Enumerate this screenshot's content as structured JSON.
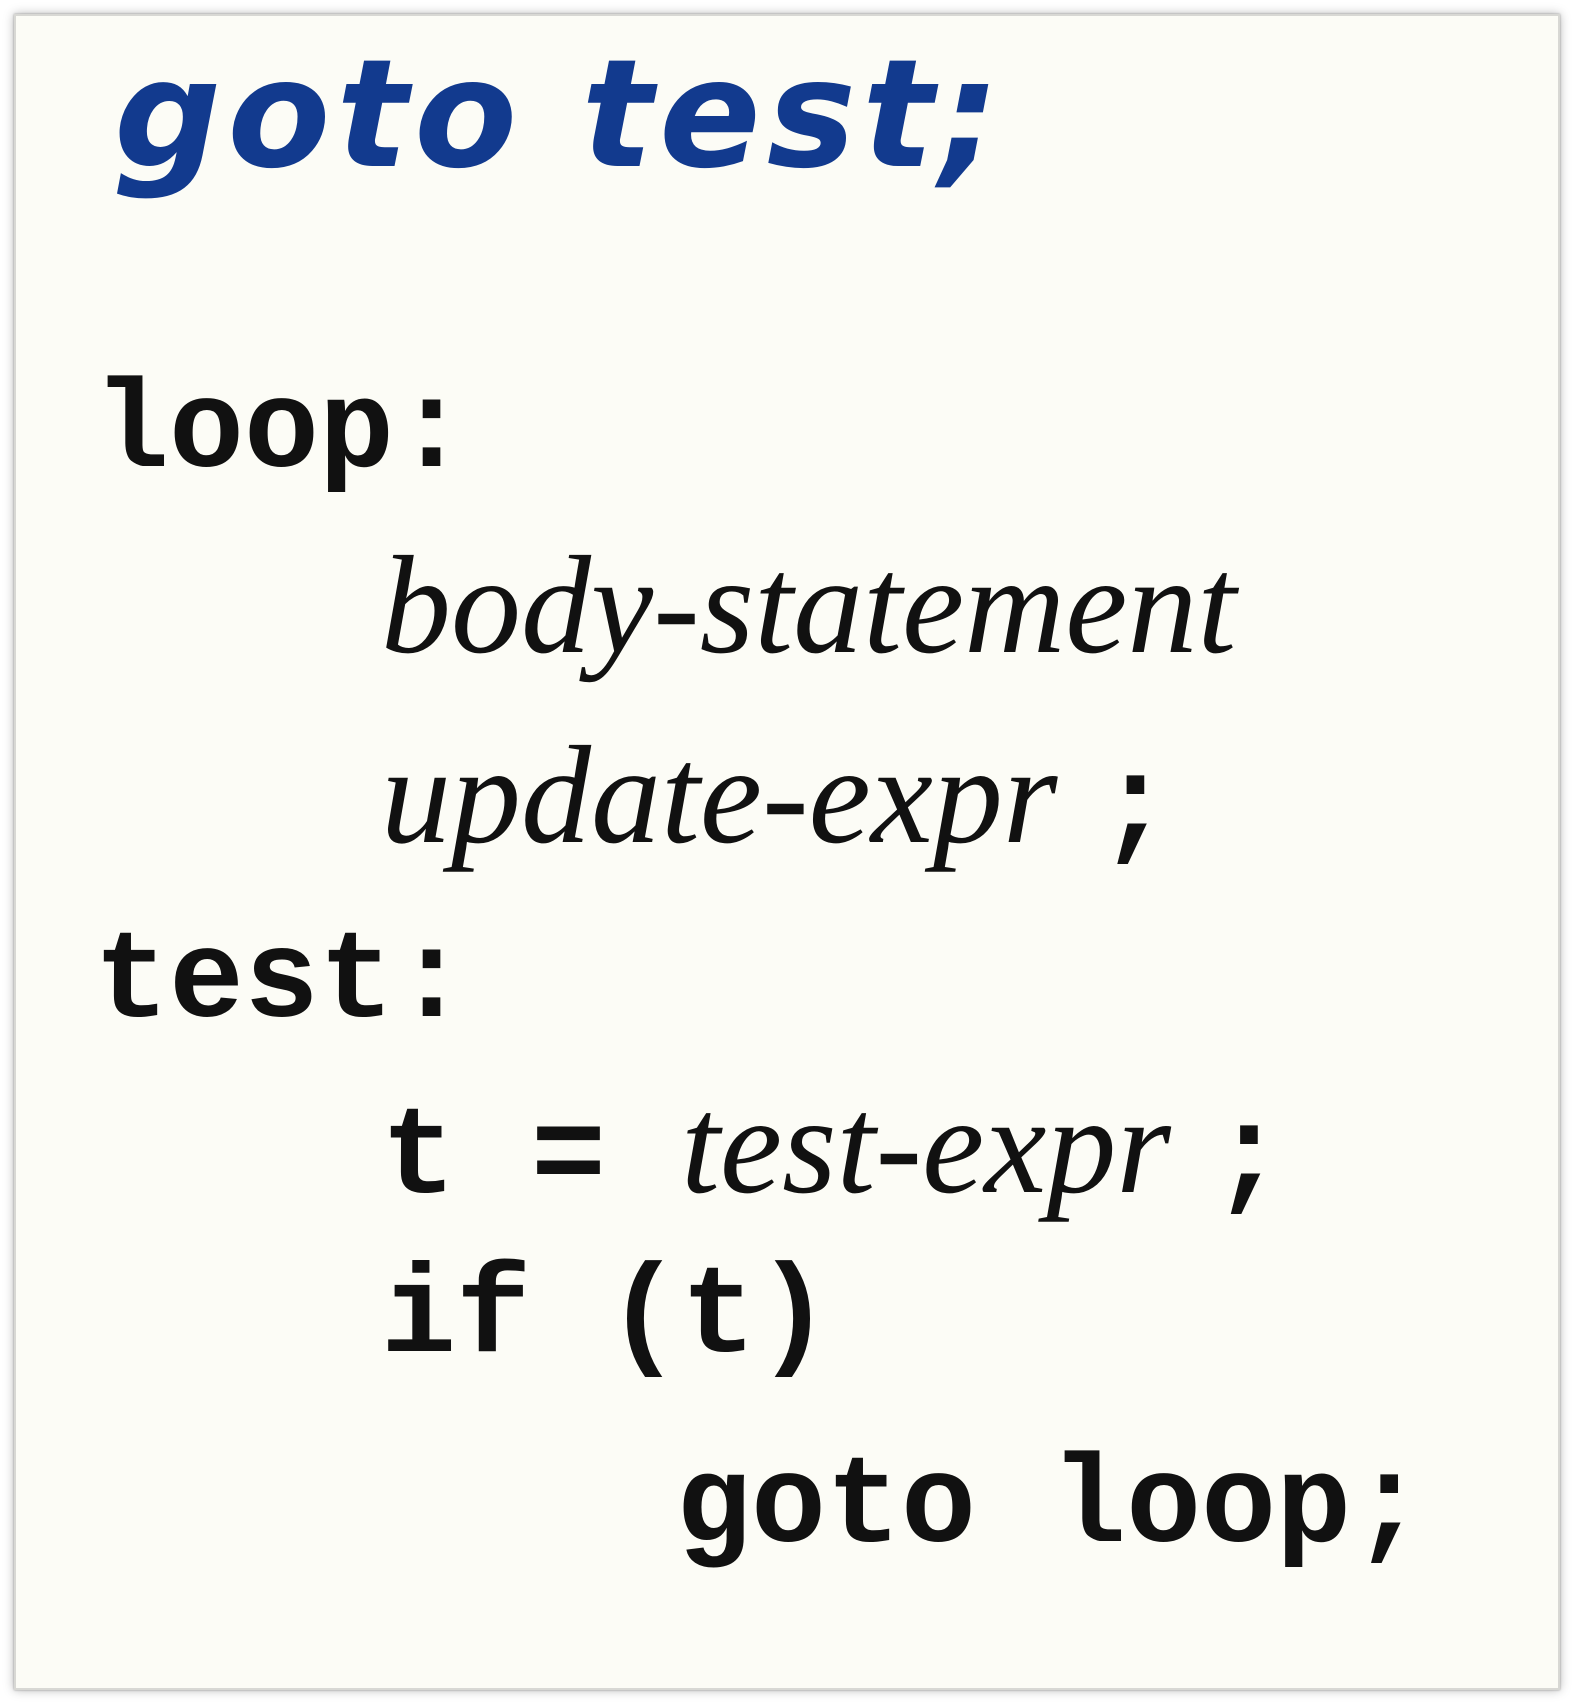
{
  "handwritten_note": "goto test;",
  "code": {
    "label_loop": "loop:",
    "body_statement": "body-statement",
    "update_expr": "update-expr",
    "semicolon": ";",
    "label_test": "test:",
    "assign_lhs": "t = ",
    "test_expr": "test-expr",
    "if_stmt": "if (t)",
    "goto_loop": "goto loop;"
  },
  "colors": {
    "handwriting": "#123a8e",
    "text": "#111111",
    "paper": "#fcfcf6"
  }
}
